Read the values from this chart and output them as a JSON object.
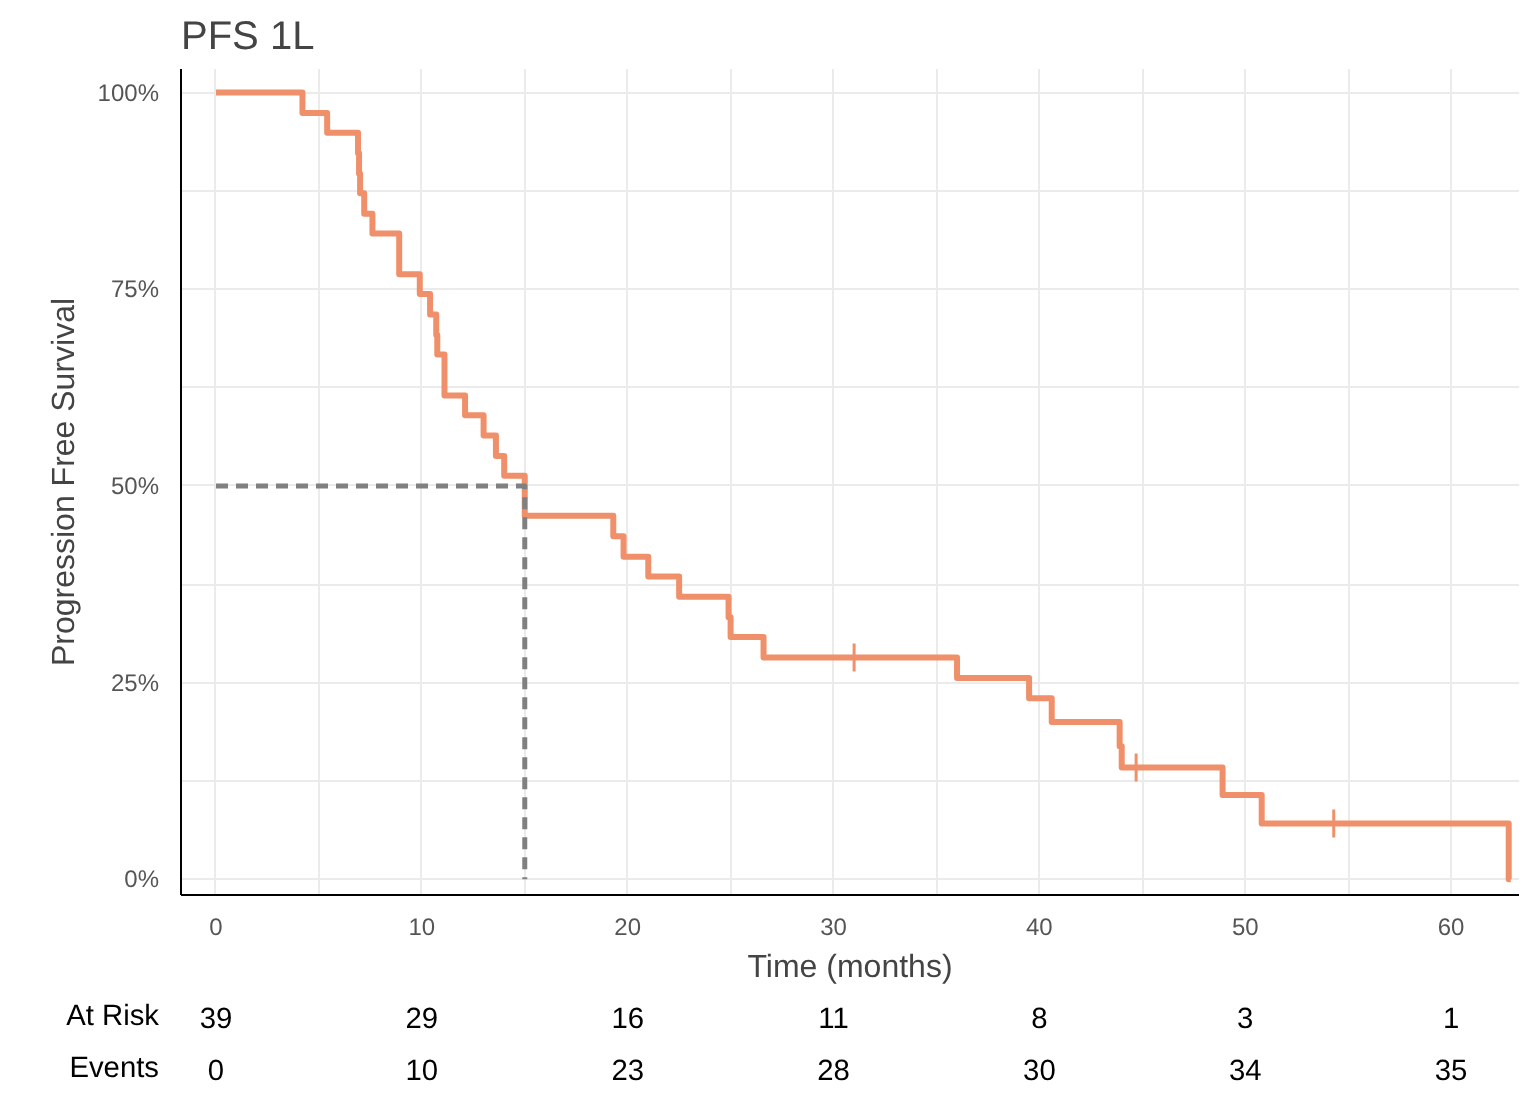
{
  "chart_data": [
    {
      "type": "step",
      "title": "PFS 1L",
      "xlabel": "Time (months)",
      "ylabel": "Progression Free Survival",
      "xlim": [
        -1.7,
        63.3
      ],
      "ylim": [
        -2,
        103
      ],
      "xticks": [
        0,
        {
          "value": 5,
          "label": null
        },
        10,
        {
          "value": 15,
          "label": null
        },
        20,
        {
          "value": 25,
          "label": null
        },
        30,
        {
          "value": 35,
          "label": null
        },
        40,
        {
          "value": 45,
          "label": null
        },
        50,
        {
          "value": 55,
          "label": null
        },
        60
      ],
      "yticks": [
        {
          "value": 0,
          "label": "0%"
        },
        {
          "value": 12.5,
          "label": null
        },
        {
          "value": 25,
          "label": "25%"
        },
        {
          "value": 37.5,
          "label": null
        },
        {
          "value": 50,
          "label": "50%"
        },
        {
          "value": 62.5,
          "label": null
        },
        {
          "value": 75,
          "label": "75%"
        },
        {
          "value": 87.5,
          "label": null
        },
        {
          "value": 100,
          "label": "100%"
        }
      ],
      "grid": true,
      "series": [
        {
          "type": "step",
          "color": "#f0906a",
          "line_style": "solid",
          "x": [
            0,
            4.2,
            5.4,
            6.9,
            6.95,
            7.0,
            7.2,
            7.6,
            8.9,
            9.9,
            10.4,
            10.7,
            10.75,
            11.1,
            12.1,
            13.0,
            13.6,
            14.0,
            15.0,
            19.3,
            19.8,
            21.0,
            22.5,
            24.9,
            25.0,
            26.6,
            36.0,
            39.5,
            40.6,
            43.9,
            44.0,
            48.9,
            50.8,
            62.8,
            62.9
          ],
          "values": [
            100,
            97.4,
            94.9,
            92.3,
            89.7,
            87.2,
            84.6,
            82.1,
            76.9,
            74.4,
            71.8,
            69.2,
            66.7,
            61.5,
            59.0,
            56.4,
            53.8,
            51.3,
            46.2,
            43.6,
            41.0,
            38.5,
            35.9,
            33.3,
            30.8,
            28.2,
            25.6,
            23.0,
            20.0,
            16.9,
            14.2,
            10.7,
            7.1,
            0,
            0
          ]
        },
        {
          "type": "scatter",
          "color": "#f0906a",
          "marker": "cross",
          "x": [
            31.0,
            44.7,
            54.3
          ],
          "values": [
            28.2,
            14.2,
            7.1
          ]
        },
        {
          "type": "line",
          "color": "#808080",
          "line_style": "dashed",
          "x": [
            0,
            15.0,
            15.0
          ],
          "values": [
            50,
            50,
            0
          ]
        }
      ]
    },
    {
      "type": "heatmap",
      "data_labels": true,
      "categories": [
        null,
        null,
        null,
        null,
        null,
        null,
        null
      ],
      "y_categories": [
        "At Risk",
        "Events"
      ],
      "cells": [
        [
          39,
          29,
          16,
          11,
          8,
          3,
          1
        ],
        [
          0,
          10,
          23,
          28,
          30,
          34,
          35
        ]
      ]
    }
  ]
}
